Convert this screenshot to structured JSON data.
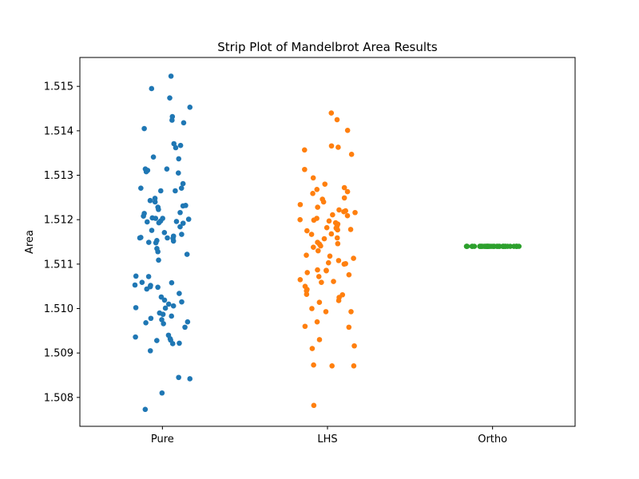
{
  "chart_data": {
    "type": "scatter",
    "subtype": "strip",
    "title": "Strip Plot of Mandelbrot Area Results",
    "xlabel": "",
    "ylabel": "Area",
    "categories": [
      "Pure",
      "LHS",
      "Ortho"
    ],
    "ylim": [
      1.50735,
      1.51565
    ],
    "yticks": [
      "1.508",
      "1.509",
      "1.510",
      "1.511",
      "1.512",
      "1.513",
      "1.514",
      "1.515"
    ],
    "grid": false,
    "series": [
      {
        "category": "Pure",
        "color": "#1f77b4",
        "values": [
          1.51523,
          1.51495,
          1.51474,
          1.51453,
          1.51432,
          1.51424,
          1.51405,
          1.51418,
          1.51371,
          1.51367,
          1.51362,
          1.51341,
          1.51337,
          1.51314,
          1.51314,
          1.51311,
          1.51308,
          1.51305,
          1.51281,
          1.51271,
          1.51271,
          1.51265,
          1.51265,
          1.51248,
          1.51243,
          1.5124,
          1.51232,
          1.51231,
          1.51228,
          1.51223,
          1.51216,
          1.51214,
          1.51208,
          1.51204,
          1.51203,
          1.51203,
          1.51201,
          1.51197,
          1.51196,
          1.51195,
          1.51193,
          1.51192,
          1.51184,
          1.51176,
          1.51171,
          1.51167,
          1.51163,
          1.5116,
          1.51159,
          1.51159,
          1.51158,
          1.51153,
          1.51152,
          1.51149,
          1.51148,
          1.51135,
          1.51128,
          1.51122,
          1.51109,
          1.51073,
          1.51072,
          1.51059,
          1.51058,
          1.51053,
          1.51052,
          1.51049,
          1.51048,
          1.51044,
          1.51034,
          1.51026,
          1.51019,
          1.51015,
          1.5101,
          1.51006,
          1.51002,
          1.51001,
          1.5099,
          1.50987,
          1.50983,
          1.50978,
          1.50975,
          1.5097,
          1.50968,
          1.50966,
          1.50958,
          1.5094,
          1.50936,
          1.50932,
          1.50929,
          1.50928,
          1.50922,
          1.50921,
          1.50905,
          1.50845,
          1.50842,
          1.5081,
          1.50773
        ]
      },
      {
        "category": "LHS",
        "color": "#ff7f0e",
        "values": [
          1.5144,
          1.51425,
          1.51401,
          1.51366,
          1.51363,
          1.51357,
          1.51347,
          1.51313,
          1.51294,
          1.5128,
          1.51272,
          1.51268,
          1.51263,
          1.51259,
          1.51249,
          1.51246,
          1.5124,
          1.51234,
          1.51228,
          1.51222,
          1.5122,
          1.51218,
          1.51216,
          1.51211,
          1.51209,
          1.51203,
          1.512,
          1.51199,
          1.51197,
          1.51193,
          1.5119,
          1.51186,
          1.51182,
          1.51181,
          1.51178,
          1.51177,
          1.51175,
          1.51168,
          1.51167,
          1.51159,
          1.51157,
          1.51149,
          1.51146,
          1.51145,
          1.51141,
          1.51138,
          1.5113,
          1.5112,
          1.51118,
          1.51113,
          1.51108,
          1.51103,
          1.51101,
          1.511,
          1.51087,
          1.51086,
          1.51085,
          1.51081,
          1.51076,
          1.51072,
          1.51065,
          1.51061,
          1.51059,
          1.5105,
          1.51043,
          1.5104,
          1.51032,
          1.51031,
          1.51025,
          1.51018,
          1.51014,
          1.51,
          1.50993,
          1.50993,
          1.5097,
          1.5096,
          1.50958,
          1.5093,
          1.50916,
          1.5091,
          1.50873,
          1.50871,
          1.50871,
          1.50782
        ]
      },
      {
        "category": "Ortho",
        "color": "#2ca02c",
        "values": [
          1.5114,
          1.5114,
          1.5114,
          1.5114,
          1.5114,
          1.5114,
          1.5114,
          1.5114,
          1.5114,
          1.5114,
          1.5114,
          1.5114,
          1.5114,
          1.5114,
          1.5114,
          1.5114,
          1.5114,
          1.5114,
          1.5114,
          1.5114,
          1.5114,
          1.5114,
          1.5114,
          1.5114,
          1.5114,
          1.5114,
          1.5114,
          1.5114,
          1.5114,
          1.5114,
          1.5114,
          1.5114,
          1.5114,
          1.5114,
          1.5114,
          1.5114,
          1.5114,
          1.5114,
          1.5114,
          1.5114
        ]
      }
    ]
  }
}
